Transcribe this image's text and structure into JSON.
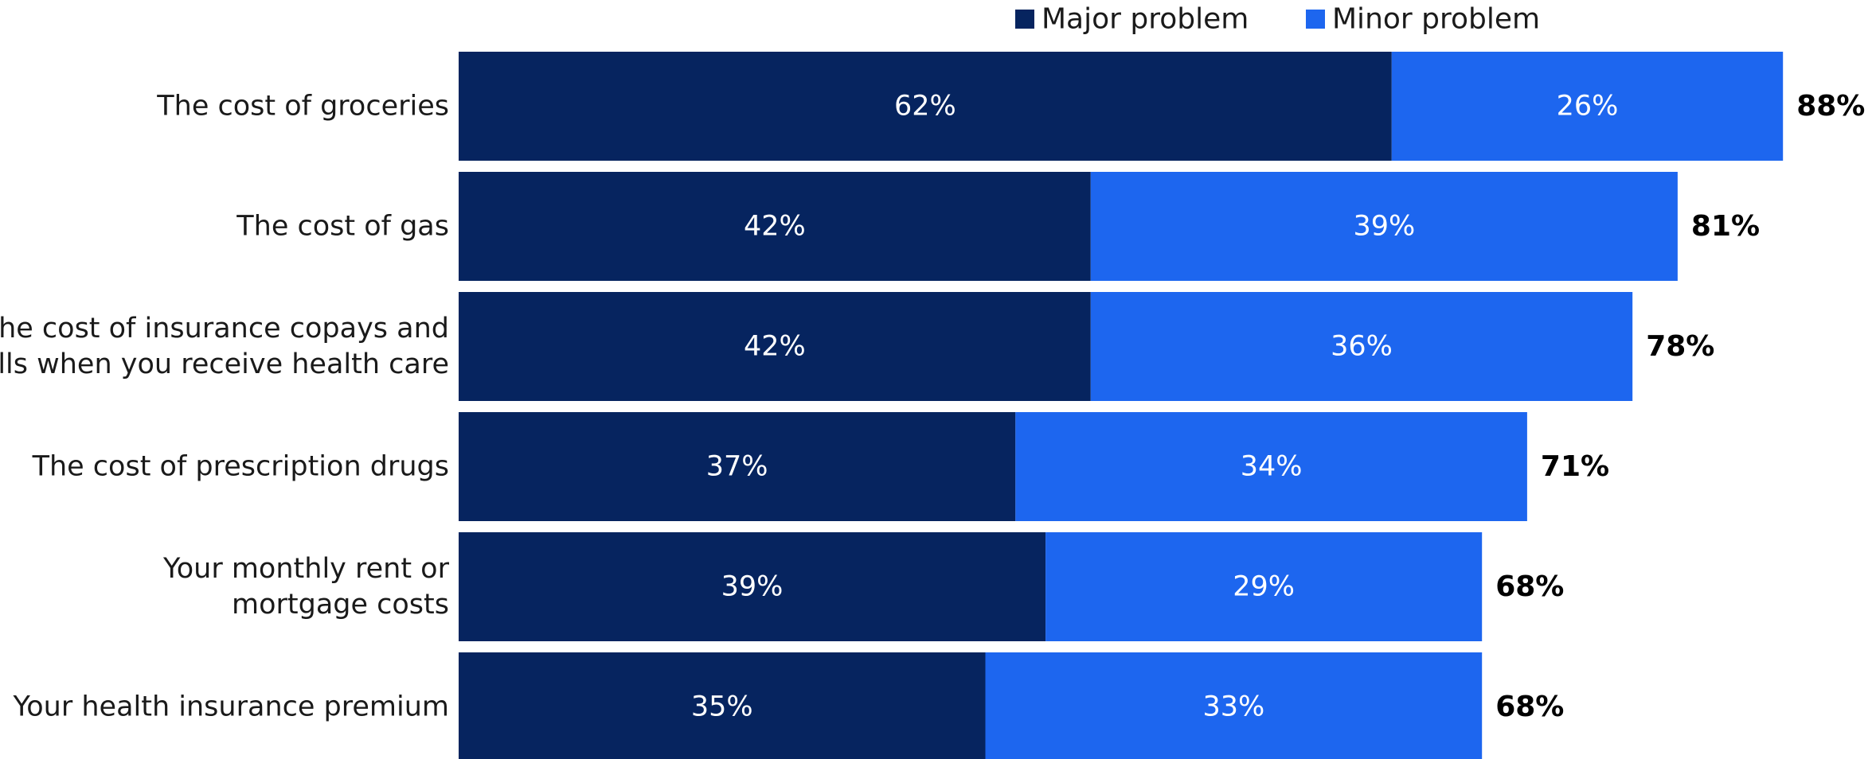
{
  "chart_data": {
    "type": "bar",
    "orientation": "horizontal",
    "stacked": true,
    "categories": [
      [
        "The cost of groceries"
      ],
      [
        "The cost of gas"
      ],
      [
        "The cost of insurance copays and",
        "bills when you receive health care"
      ],
      [
        "The cost of prescription drugs"
      ],
      [
        "Your monthly rent or",
        "mortgage costs"
      ],
      [
        "Your health insurance premium"
      ]
    ],
    "series": [
      {
        "name": "Major problem",
        "color": "#06245f",
        "values": [
          62,
          42,
          42,
          37,
          39,
          35
        ]
      },
      {
        "name": "Minor problem",
        "color": "#1d66ef",
        "values": [
          26,
          39,
          36,
          34,
          29,
          33
        ]
      }
    ],
    "totals": [
      88,
      81,
      78,
      71,
      68,
      68
    ],
    "value_suffix": "%",
    "xlim": [
      0,
      100
    ],
    "grid": false,
    "legend_position": "top"
  }
}
